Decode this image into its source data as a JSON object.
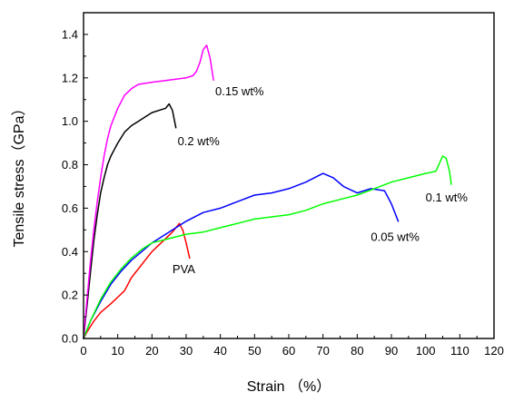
{
  "chart_data": {
    "type": "line",
    "xlabel": "Strain （%）",
    "ylabel": "Tensile stress（GPa）",
    "xlim": [
      0,
      120
    ],
    "ylim": [
      0,
      1.5
    ],
    "x_ticks": [
      "0",
      "10",
      "20",
      "30",
      "40",
      "50",
      "60",
      "70",
      "80",
      "90",
      "100",
      "110",
      "120"
    ],
    "y_ticks": [
      "0.0",
      "0.2",
      "0.4",
      "0.6",
      "0.8",
      "1.0",
      "1.2",
      "1.4"
    ],
    "x_tick_values": [
      0,
      10,
      20,
      30,
      40,
      50,
      60,
      70,
      80,
      90,
      100,
      110,
      120
    ],
    "y_tick_values": [
      0,
      0.2,
      0.4,
      0.6,
      0.8,
      1.0,
      1.2,
      1.4
    ],
    "grid": false,
    "series": [
      {
        "name": "PVA",
        "color": "#ff0000",
        "points": [
          [
            0,
            0
          ],
          [
            1,
            0.03
          ],
          [
            3,
            0.08
          ],
          [
            5,
            0.12
          ],
          [
            8,
            0.16
          ],
          [
            10,
            0.19
          ],
          [
            12,
            0.22
          ],
          [
            14,
            0.28
          ],
          [
            16,
            0.32
          ],
          [
            18,
            0.36
          ],
          [
            20,
            0.4
          ],
          [
            22,
            0.43
          ],
          [
            24,
            0.46
          ],
          [
            26,
            0.49
          ],
          [
            28,
            0.53
          ],
          [
            29,
            0.5
          ],
          [
            30,
            0.44
          ],
          [
            31,
            0.37
          ]
        ]
      },
      {
        "name": "0.05 wt%",
        "color": "#0000ff",
        "points": [
          [
            0,
            0
          ],
          [
            2,
            0.08
          ],
          [
            5,
            0.17
          ],
          [
            8,
            0.25
          ],
          [
            11,
            0.31
          ],
          [
            14,
            0.36
          ],
          [
            17,
            0.4
          ],
          [
            20,
            0.44
          ],
          [
            25,
            0.49
          ],
          [
            30,
            0.54
          ],
          [
            35,
            0.58
          ],
          [
            40,
            0.6
          ],
          [
            45,
            0.63
          ],
          [
            50,
            0.66
          ],
          [
            55,
            0.67
          ],
          [
            60,
            0.69
          ],
          [
            65,
            0.72
          ],
          [
            70,
            0.76
          ],
          [
            73,
            0.74
          ],
          [
            76,
            0.7
          ],
          [
            80,
            0.67
          ],
          [
            84,
            0.69
          ],
          [
            88,
            0.68
          ],
          [
            90,
            0.62
          ],
          [
            92,
            0.54
          ]
        ]
      },
      {
        "name": "0.1 wt%",
        "color": "#00ff00",
        "points": [
          [
            0,
            0
          ],
          [
            2,
            0.08
          ],
          [
            5,
            0.18
          ],
          [
            8,
            0.26
          ],
          [
            11,
            0.32
          ],
          [
            14,
            0.37
          ],
          [
            17,
            0.41
          ],
          [
            20,
            0.44
          ],
          [
            25,
            0.46
          ],
          [
            30,
            0.48
          ],
          [
            35,
            0.49
          ],
          [
            40,
            0.51
          ],
          [
            45,
            0.53
          ],
          [
            50,
            0.55
          ],
          [
            55,
            0.56
          ],
          [
            60,
            0.57
          ],
          [
            65,
            0.59
          ],
          [
            70,
            0.62
          ],
          [
            75,
            0.64
          ],
          [
            80,
            0.66
          ],
          [
            85,
            0.69
          ],
          [
            90,
            0.72
          ],
          [
            95,
            0.74
          ],
          [
            100,
            0.76
          ],
          [
            103,
            0.77
          ],
          [
            105,
            0.84
          ],
          [
            106,
            0.83
          ],
          [
            107,
            0.77
          ],
          [
            107.5,
            0.71
          ]
        ]
      },
      {
        "name": "0.2 wt%",
        "color": "#000000",
        "points": [
          [
            0,
            0
          ],
          [
            1,
            0.15
          ],
          [
            2,
            0.3
          ],
          [
            3,
            0.45
          ],
          [
            4,
            0.57
          ],
          [
            5,
            0.67
          ],
          [
            6,
            0.74
          ],
          [
            7,
            0.8
          ],
          [
            8,
            0.84
          ],
          [
            10,
            0.9
          ],
          [
            12,
            0.95
          ],
          [
            14,
            0.98
          ],
          [
            16,
            1.0
          ],
          [
            18,
            1.02
          ],
          [
            20,
            1.04
          ],
          [
            22,
            1.05
          ],
          [
            24,
            1.06
          ],
          [
            25,
            1.08
          ],
          [
            26,
            1.05
          ],
          [
            27,
            0.97
          ]
        ]
      },
      {
        "name": "0.15 wt%",
        "color": "#ff00ff",
        "points": [
          [
            0,
            0
          ],
          [
            1,
            0.18
          ],
          [
            2,
            0.35
          ],
          [
            3,
            0.5
          ],
          [
            4,
            0.63
          ],
          [
            5,
            0.74
          ],
          [
            6,
            0.84
          ],
          [
            7,
            0.92
          ],
          [
            8,
            0.98
          ],
          [
            10,
            1.06
          ],
          [
            12,
            1.12
          ],
          [
            14,
            1.15
          ],
          [
            16,
            1.17
          ],
          [
            20,
            1.18
          ],
          [
            25,
            1.19
          ],
          [
            30,
            1.2
          ],
          [
            32,
            1.21
          ],
          [
            33,
            1.23
          ],
          [
            34,
            1.27
          ],
          [
            35,
            1.33
          ],
          [
            36,
            1.35
          ],
          [
            37,
            1.29
          ],
          [
            38,
            1.19
          ]
        ]
      }
    ],
    "annotations": [
      {
        "text": "0.15 wt%",
        "x": 38.5,
        "y": 1.12
      },
      {
        "text": "0.2 wt%",
        "x": 27.5,
        "y": 0.89
      },
      {
        "text": "0.1 wt%",
        "x": 100,
        "y": 0.63
      },
      {
        "text": "0.05 wt%",
        "x": 84,
        "y": 0.45
      },
      {
        "text": "PVA",
        "x": 26,
        "y": 0.3
      }
    ]
  }
}
